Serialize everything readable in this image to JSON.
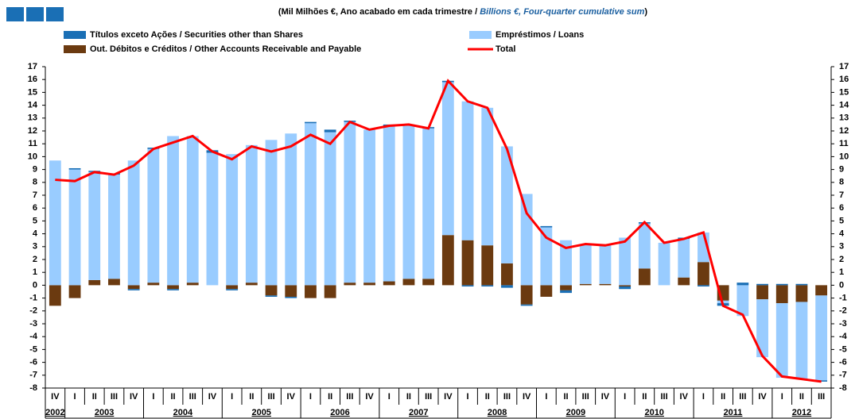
{
  "chart_data": {
    "type": "stacked-bar-line",
    "title_pt": "(Mil Milhões €, Ano acabado em cada trimestre / ",
    "title_en": "Billions €, Four-quarter cumulative sum",
    "title_close": ")",
    "categories": [
      "IV",
      "I",
      "II",
      "III",
      "IV",
      "I",
      "II",
      "III",
      "IV",
      "I",
      "II",
      "III",
      "IV",
      "I",
      "II",
      "III",
      "IV",
      "I",
      "II",
      "III",
      "IV",
      "I",
      "II",
      "III",
      "IV",
      "I",
      "II",
      "III",
      "IV",
      "I",
      "II",
      "III",
      "IV",
      "I",
      "II",
      "III",
      "IV",
      "I",
      "II",
      "III"
    ],
    "category_years": [
      "2002",
      "2003",
      "2003",
      "2003",
      "2003",
      "2004",
      "2004",
      "2004",
      "2004",
      "2005",
      "2005",
      "2005",
      "2005",
      "2006",
      "2006",
      "2006",
      "2006",
      "2007",
      "2007",
      "2007",
      "2007",
      "2008",
      "2008",
      "2008",
      "2008",
      "2009",
      "2009",
      "2009",
      "2009",
      "2010",
      "2010",
      "2010",
      "2010",
      "2011",
      "2011",
      "2011",
      "2011",
      "2012",
      "2012",
      "2012"
    ],
    "series": [
      {
        "name": "Out. Débitos e Créditos / Other Accounts Receivable and Payable",
        "color": "#6b3a10",
        "kind": "bar",
        "values": [
          -1.6,
          -1.0,
          0.4,
          0.5,
          -0.3,
          0.2,
          -0.3,
          0.2,
          0,
          -0.3,
          0.2,
          -0.8,
          -0.9,
          -1.0,
          -1.0,
          0.2,
          0.2,
          0.3,
          0.5,
          0.5,
          3.9,
          3.5,
          3.1,
          1.7,
          -1.5,
          -0.9,
          -0.4,
          0.1,
          0.1,
          -0.1,
          1.3,
          0,
          0.6,
          1.8,
          -1.2,
          0,
          -1.1,
          -1.4,
          -1.3,
          -0.8
        ]
      },
      {
        "name": "Empréstimos / Loans",
        "color": "#99ccff",
        "kind": "bar",
        "values": [
          9.7,
          9.0,
          8.4,
          8.1,
          9.7,
          10.4,
          11.6,
          11.4,
          10.3,
          10.2,
          10.7,
          11.3,
          11.8,
          12.6,
          11.9,
          12.5,
          11.9,
          12.1,
          12.0,
          11.7,
          11.9,
          10.8,
          10.7,
          9.1,
          7.1,
          4.5,
          3.5,
          3.1,
          3.0,
          3.7,
          3.5,
          3.3,
          3.0,
          2.3,
          -0.2,
          -2.4,
          -4.5,
          -5.8,
          -6.0,
          -6.6
        ]
      },
      {
        "name": "Títulos exceto Ações / Securities other than Shares",
        "color": "#1a6fb5",
        "kind": "bar",
        "values": [
          0,
          0.1,
          0.1,
          0.1,
          -0.1,
          0.1,
          -0.1,
          0,
          0.2,
          -0.1,
          0,
          -0.1,
          -0.1,
          0.1,
          0.2,
          0.1,
          0,
          0.1,
          0,
          0.1,
          0.1,
          -0.1,
          -0.1,
          -0.2,
          -0.1,
          0.1,
          -0.2,
          0,
          0,
          -0.2,
          0.1,
          0,
          0.1,
          -0.1,
          -0.2,
          0.2,
          0.1,
          0.1,
          0.1,
          -0.1
        ]
      },
      {
        "name": "Total",
        "color": "#ff0000",
        "kind": "line",
        "values": [
          8.2,
          8.1,
          8.8,
          8.6,
          9.3,
          10.6,
          11.1,
          11.6,
          10.4,
          9.8,
          10.8,
          10.4,
          10.8,
          11.7,
          11.0,
          12.7,
          12.1,
          12.4,
          12.5,
          12.2,
          15.9,
          14.3,
          13.8,
          10.6,
          5.6,
          3.7,
          2.9,
          3.2,
          3.1,
          3.4,
          4.9,
          3.3,
          3.6,
          4.1,
          -1.6,
          -2.3,
          -5.5,
          -7.1,
          -7.3,
          -7.5
        ]
      }
    ],
    "legend_order": [
      2,
      1,
      0,
      3
    ],
    "ylim": [
      -8,
      17
    ],
    "yticks": [
      -8,
      -7,
      -6,
      -5,
      -4,
      -3,
      -2,
      -1,
      0,
      1,
      2,
      3,
      4,
      5,
      6,
      7,
      8,
      9,
      10,
      11,
      12,
      13,
      14,
      15,
      16,
      17
    ],
    "y2lim": [
      -8,
      17
    ],
    "y2ticks": [
      -8,
      -7,
      -6,
      -5,
      -4,
      -3,
      -2,
      -1,
      0,
      1,
      2,
      3,
      4,
      5,
      6,
      7,
      8,
      9,
      10,
      11,
      12,
      13,
      14,
      15,
      16,
      17
    ]
  }
}
